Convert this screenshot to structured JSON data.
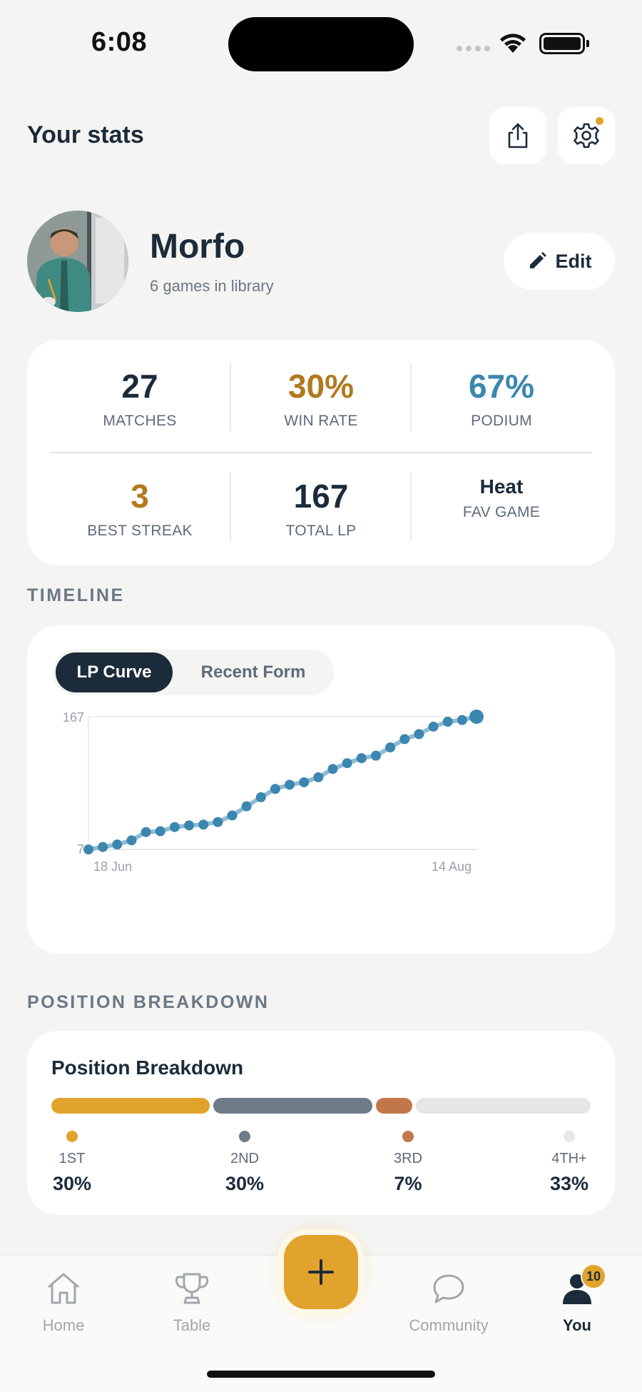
{
  "status": {
    "time": "6:08"
  },
  "header": {
    "title": "Your stats"
  },
  "profile": {
    "name": "Morfo",
    "subtitle": "6 games in library",
    "edit_label": "Edit"
  },
  "stats": [
    {
      "value": "27",
      "label": "MATCHES",
      "color": "#1c2b3a"
    },
    {
      "value": "30%",
      "label": "WIN RATE",
      "color": "#b17a1f"
    },
    {
      "value": "67%",
      "label": "PODIUM",
      "color": "#3b87b0"
    },
    {
      "value": "3",
      "label": "BEST STREAK",
      "color": "#b17a1f"
    },
    {
      "value": "167",
      "label": "TOTAL LP",
      "color": "#1c2b3a"
    },
    {
      "value": "Heat",
      "label": "FAV GAME",
      "color": "#1c2b3a"
    }
  ],
  "timeline": {
    "section_label": "TIMELINE",
    "tabs": [
      {
        "label": "LP Curve",
        "active": true
      },
      {
        "label": "Recent Form",
        "active": false
      }
    ]
  },
  "chart_data": {
    "type": "line",
    "y_ticks": [
      "167",
      "7"
    ],
    "ylim": [
      7,
      167
    ],
    "x_start_label": "18  Jun",
    "x_end_label": "14  Aug",
    "values": [
      7,
      10,
      13,
      18,
      28,
      29,
      34,
      36,
      37,
      40,
      48,
      59,
      70,
      80,
      85,
      88,
      94,
      104,
      111,
      117,
      120,
      130,
      140,
      146,
      155,
      161,
      163,
      167
    ],
    "line_color": "#3b87b0"
  },
  "positions": {
    "section_label": "POSITION BREAKDOWN",
    "title": "Position Breakdown",
    "items": [
      {
        "label": "1ST",
        "pct": "30%",
        "share": 30,
        "color": "#e2a32c"
      },
      {
        "label": "2ND",
        "pct": "30%",
        "share": 30,
        "color": "#6f7b86"
      },
      {
        "label": "3RD",
        "pct": "7%",
        "share": 7,
        "color": "#c2774a"
      },
      {
        "label": "4TH+",
        "pct": "33%",
        "share": 33,
        "color": "#e6e6e6"
      }
    ]
  },
  "tabbar": {
    "items": [
      {
        "label": "Home",
        "icon": "home-icon"
      },
      {
        "label": "Table",
        "icon": "trophy-icon"
      },
      {
        "label": "Community",
        "icon": "chat-bubble-icon"
      },
      {
        "label": "You",
        "icon": "profile-icon"
      }
    ],
    "add_icon": "plus-icon",
    "badge": "10"
  }
}
